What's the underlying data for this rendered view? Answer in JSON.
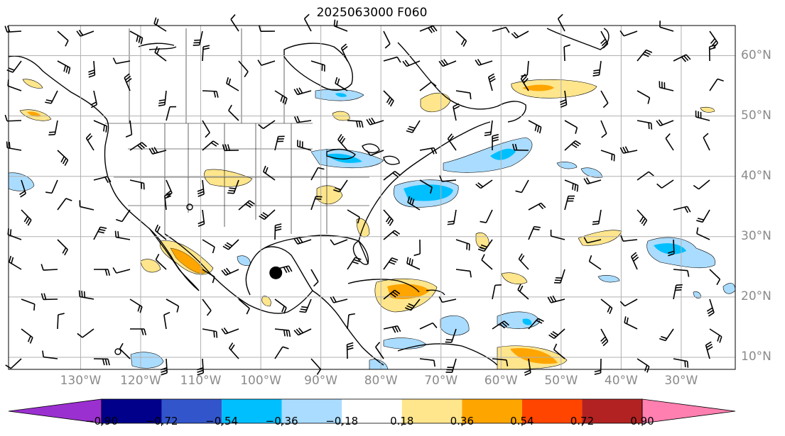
{
  "title": "2025063000 F060",
  "map": {
    "projection": "PlateCarree",
    "extent_lon": [
      -142,
      -21
    ],
    "extent_lat": [
      8,
      65
    ],
    "lon_labels": [
      "130°W",
      "120°W",
      "110°W",
      "100°W",
      "90°W",
      "80°W",
      "70°W",
      "60°W",
      "50°W",
      "40°W",
      "30°W"
    ],
    "lon_values": [
      -130,
      -120,
      -110,
      -100,
      -90,
      -80,
      -70,
      -60,
      -50,
      -40,
      -30
    ],
    "lat_labels": [
      "60°N",
      "50°N",
      "40°N",
      "30°N",
      "20°N",
      "10°N"
    ],
    "lat_values": [
      60,
      50,
      40,
      30,
      20,
      10
    ],
    "marker": {
      "lon": -97.5,
      "lat": 24.0,
      "label": ""
    }
  },
  "colorbar": {
    "ticks": [
      "−0.90",
      "−0.72",
      "−0.54",
      "−0.36",
      "−0.18",
      "0.18",
      "0.36",
      "0.54",
      "0.72",
      "0.90"
    ],
    "colors": [
      "#9b30d0",
      "#00008b",
      "#3355cc",
      "#00bfff",
      "#aadcff",
      "#ffffff",
      "#ffe68c",
      "#ffa500",
      "#ff4500",
      "#b22222",
      "#ff80b0"
    ]
  },
  "colors": {
    "coast": "#000000",
    "grid": "#b0b0b0",
    "barb": "#000000"
  }
}
